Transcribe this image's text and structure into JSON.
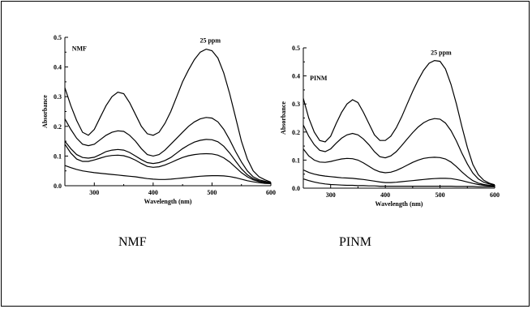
{
  "captions": [
    "NMF",
    "PINM"
  ],
  "chart_data": [
    {
      "type": "line",
      "xlabel": "Wavelength (nm)",
      "ylabel": "Absorbance",
      "xlim": [
        250,
        600
      ],
      "ylim": [
        0,
        0.5
      ],
      "xticks": [
        300,
        400,
        500,
        600
      ],
      "yticks": [
        0.0,
        0.1,
        0.2,
        0.3,
        0.4,
        0.5
      ],
      "annotations": [
        {
          "text": "NMF",
          "x": 262,
          "y": 0.455
        },
        {
          "text": "25 ppm",
          "x": 497,
          "y": 0.482
        }
      ],
      "series": [
        {
          "x": [
            250,
            260,
            270,
            280,
            290,
            300,
            310,
            320,
            330,
            340,
            350,
            360,
            370,
            380,
            390,
            400,
            410,
            420,
            430,
            440,
            450,
            460,
            470,
            480,
            490,
            500,
            510,
            520,
            530,
            540,
            550,
            560,
            570,
            580,
            590,
            600
          ],
          "values": [
            0.33,
            0.27,
            0.22,
            0.18,
            0.17,
            0.19,
            0.23,
            0.27,
            0.3,
            0.315,
            0.31,
            0.28,
            0.24,
            0.2,
            0.175,
            0.17,
            0.18,
            0.21,
            0.25,
            0.3,
            0.35,
            0.39,
            0.425,
            0.45,
            0.46,
            0.455,
            0.43,
            0.38,
            0.31,
            0.23,
            0.15,
            0.09,
            0.05,
            0.03,
            0.02,
            0.012
          ]
        },
        {
          "x": [
            250,
            260,
            270,
            280,
            290,
            300,
            310,
            320,
            330,
            340,
            350,
            360,
            370,
            380,
            390,
            400,
            410,
            420,
            430,
            440,
            450,
            460,
            470,
            480,
            490,
            500,
            510,
            520,
            530,
            540,
            550,
            560,
            570,
            580,
            590,
            600
          ],
          "values": [
            0.225,
            0.19,
            0.16,
            0.14,
            0.135,
            0.14,
            0.155,
            0.17,
            0.18,
            0.185,
            0.183,
            0.17,
            0.15,
            0.125,
            0.105,
            0.1,
            0.105,
            0.12,
            0.14,
            0.16,
            0.18,
            0.2,
            0.215,
            0.225,
            0.23,
            0.228,
            0.215,
            0.19,
            0.155,
            0.115,
            0.08,
            0.05,
            0.03,
            0.02,
            0.015,
            0.01
          ]
        },
        {
          "x": [
            250,
            260,
            270,
            280,
            290,
            300,
            310,
            320,
            330,
            340,
            350,
            360,
            370,
            380,
            390,
            400,
            410,
            420,
            430,
            440,
            450,
            460,
            470,
            480,
            490,
            500,
            510,
            520,
            530,
            540,
            550,
            560,
            570,
            580,
            590,
            600
          ],
          "values": [
            0.15,
            0.125,
            0.105,
            0.095,
            0.093,
            0.096,
            0.105,
            0.115,
            0.12,
            0.122,
            0.12,
            0.112,
            0.1,
            0.088,
            0.078,
            0.075,
            0.078,
            0.085,
            0.095,
            0.11,
            0.125,
            0.137,
            0.147,
            0.153,
            0.156,
            0.155,
            0.148,
            0.133,
            0.11,
            0.083,
            0.057,
            0.037,
            0.024,
            0.016,
            0.012,
            0.008
          ]
        },
        {
          "x": [
            250,
            260,
            270,
            280,
            290,
            300,
            310,
            320,
            330,
            340,
            350,
            360,
            370,
            380,
            390,
            400,
            410,
            420,
            430,
            440,
            450,
            460,
            470,
            480,
            490,
            500,
            510,
            520,
            530,
            540,
            550,
            560,
            570,
            580,
            590,
            600
          ],
          "values": [
            0.14,
            0.11,
            0.09,
            0.082,
            0.082,
            0.087,
            0.093,
            0.099,
            0.102,
            0.103,
            0.101,
            0.095,
            0.086,
            0.075,
            0.065,
            0.062,
            0.064,
            0.07,
            0.078,
            0.087,
            0.095,
            0.101,
            0.105,
            0.107,
            0.108,
            0.107,
            0.103,
            0.094,
            0.08,
            0.062,
            0.044,
            0.03,
            0.02,
            0.014,
            0.011,
            0.008
          ]
        },
        {
          "x": [
            250,
            260,
            270,
            280,
            290,
            300,
            310,
            320,
            330,
            340,
            350,
            360,
            370,
            380,
            390,
            400,
            410,
            420,
            430,
            440,
            450,
            460,
            470,
            480,
            490,
            500,
            510,
            520,
            530,
            540,
            550,
            560,
            570,
            580,
            590,
            600
          ],
          "values": [
            0.068,
            0.061,
            0.055,
            0.05,
            0.047,
            0.044,
            0.042,
            0.04,
            0.038,
            0.036,
            0.034,
            0.032,
            0.03,
            0.027,
            0.024,
            0.022,
            0.021,
            0.021,
            0.022,
            0.024,
            0.026,
            0.028,
            0.03,
            0.032,
            0.033,
            0.034,
            0.034,
            0.033,
            0.031,
            0.027,
            0.022,
            0.017,
            0.013,
            0.01,
            0.008,
            0.007
          ]
        }
      ]
    },
    {
      "type": "line",
      "xlabel": "Wavelength (nm)",
      "ylabel": "Absorbance",
      "xlim": [
        250,
        600
      ],
      "ylim": [
        0,
        0.5
      ],
      "xticks": [
        300,
        400,
        500,
        600
      ],
      "yticks": [
        0.0,
        0.1,
        0.2,
        0.3,
        0.4,
        0.5
      ],
      "annotations": [
        {
          "text": "PINM",
          "x": 262,
          "y": 0.385
        },
        {
          "text": "25 ppm",
          "x": 502,
          "y": 0.475
        }
      ],
      "series": [
        {
          "x": [
            250,
            260,
            270,
            280,
            290,
            300,
            310,
            320,
            330,
            340,
            350,
            360,
            370,
            380,
            390,
            400,
            410,
            420,
            430,
            440,
            450,
            460,
            470,
            480,
            490,
            500,
            510,
            520,
            530,
            540,
            550,
            560,
            570,
            580,
            590,
            600
          ],
          "values": [
            0.32,
            0.25,
            0.2,
            0.17,
            0.165,
            0.185,
            0.23,
            0.27,
            0.3,
            0.315,
            0.305,
            0.27,
            0.23,
            0.19,
            0.17,
            0.17,
            0.185,
            0.215,
            0.255,
            0.3,
            0.345,
            0.385,
            0.42,
            0.445,
            0.455,
            0.452,
            0.425,
            0.37,
            0.3,
            0.22,
            0.145,
            0.085,
            0.048,
            0.028,
            0.018,
            0.012
          ]
        },
        {
          "x": [
            250,
            260,
            270,
            280,
            290,
            300,
            310,
            320,
            330,
            340,
            350,
            360,
            370,
            380,
            390,
            400,
            410,
            420,
            430,
            440,
            450,
            460,
            470,
            480,
            490,
            500,
            510,
            520,
            530,
            540,
            550,
            560,
            570,
            580,
            590,
            600
          ],
          "values": [
            0.225,
            0.185,
            0.155,
            0.135,
            0.13,
            0.14,
            0.16,
            0.178,
            0.19,
            0.195,
            0.19,
            0.175,
            0.155,
            0.13,
            0.112,
            0.108,
            0.115,
            0.13,
            0.152,
            0.175,
            0.198,
            0.218,
            0.233,
            0.243,
            0.248,
            0.246,
            0.232,
            0.205,
            0.168,
            0.125,
            0.086,
            0.054,
            0.033,
            0.021,
            0.015,
            0.01
          ]
        },
        {
          "x": [
            250,
            260,
            270,
            280,
            290,
            300,
            310,
            320,
            330,
            340,
            350,
            360,
            370,
            380,
            390,
            400,
            410,
            420,
            430,
            440,
            450,
            460,
            470,
            480,
            490,
            500,
            510,
            520,
            530,
            540,
            550,
            560,
            570,
            580,
            590,
            600
          ],
          "values": [
            0.14,
            0.115,
            0.1,
            0.093,
            0.092,
            0.095,
            0.1,
            0.104,
            0.106,
            0.105,
            0.1,
            0.09,
            0.078,
            0.066,
            0.058,
            0.055,
            0.057,
            0.063,
            0.072,
            0.082,
            0.092,
            0.1,
            0.106,
            0.109,
            0.11,
            0.109,
            0.104,
            0.093,
            0.077,
            0.058,
            0.041,
            0.027,
            0.018,
            0.013,
            0.01,
            0.008
          ]
        },
        {
          "x": [
            250,
            260,
            270,
            280,
            290,
            300,
            310,
            320,
            330,
            340,
            350,
            360,
            370,
            380,
            390,
            400,
            410,
            420,
            430,
            440,
            450,
            460,
            470,
            480,
            490,
            500,
            510,
            520,
            530,
            540,
            550,
            560,
            570,
            580,
            590,
            600
          ],
          "values": [
            0.065,
            0.056,
            0.05,
            0.046,
            0.043,
            0.041,
            0.039,
            0.037,
            0.036,
            0.035,
            0.033,
            0.031,
            0.028,
            0.025,
            0.022,
            0.02,
            0.02,
            0.021,
            0.023,
            0.025,
            0.027,
            0.029,
            0.031,
            0.033,
            0.034,
            0.035,
            0.035,
            0.034,
            0.031,
            0.027,
            0.022,
            0.017,
            0.013,
            0.01,
            0.008,
            0.007
          ]
        },
        {
          "x": [
            250,
            260,
            270,
            280,
            290,
            300,
            310,
            320,
            330,
            340,
            350,
            360,
            370,
            380,
            390,
            400,
            410,
            420,
            430,
            440,
            450,
            460,
            470,
            480,
            490,
            500,
            510,
            520,
            530,
            540,
            550,
            560,
            570,
            580,
            590,
            600
          ],
          "values": [
            0.033,
            0.027,
            0.022,
            0.018,
            0.015,
            0.013,
            0.012,
            0.011,
            0.01,
            0.01,
            0.009,
            0.009,
            0.008,
            0.008,
            0.007,
            0.007,
            0.007,
            0.007,
            0.007,
            0.007,
            0.007,
            0.007,
            0.007,
            0.007,
            0.007,
            0.007,
            0.007,
            0.007,
            0.006,
            0.006,
            0.006,
            0.006,
            0.005,
            0.005,
            0.005,
            0.005
          ]
        }
      ]
    }
  ]
}
